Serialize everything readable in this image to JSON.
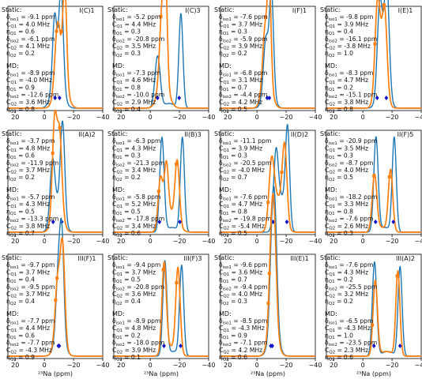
{
  "figure": {
    "xlabel": "²³Na (ppm)",
    "x_ticks": [
      "20",
      "0",
      "−20",
      "−40"
    ],
    "colors": {
      "static": "#1f77b4",
      "md": "#ff7f0e",
      "diamond": "#1414c8"
    },
    "static_header": "Static:",
    "md_header": "MD:"
  },
  "chart_data": [
    {
      "type": "line",
      "title": "I(C)1",
      "xlim": [
        25,
        -40
      ],
      "static": [
        "δiso1 = -9.1 ppm",
        "CQ1 = 4.0 MHz",
        "ηQ1 = 0.6",
        "δiso2 = -6.1 ppm",
        "CQ2 = 4.1 MHz",
        "ηQ2 = 0.2"
      ],
      "md": [
        "δiso1 = -8.9 ppm",
        "CQ1 = -4.0 MHz",
        "ηQ1 = 0.9",
        "δiso2 = -12.6 ppm",
        "CQ2 = 3.6 MHz",
        "ηQ2 = 0.8"
      ],
      "series": [
        {
          "name": "static",
          "peaks": [
            [
              -7.0,
              0.7,
              1.4
            ],
            [
              -11.5,
              1.0,
              1.5
            ],
            [
              -9.0,
              0.35,
              3.5
            ]
          ]
        },
        {
          "name": "md",
          "peaks": [
            [
              -9.0,
              0.6,
              1.8
            ],
            [
              -14.0,
              1.0,
              1.3
            ],
            [
              -11.5,
              0.4,
              3.5
            ]
          ]
        }
      ],
      "markers": {
        "static": [
          -7.3,
          -10.4
        ],
        "md": [
          -8.3,
          -11.8
        ]
      }
    },
    {
      "type": "line",
      "title": "I(C)3",
      "xlim": [
        25,
        -40
      ],
      "static": [
        "δiso1 = -5.2 ppm",
        "CQ1 = 4.4 MHz",
        "ηQ1 = 0.3",
        "δiso2 = -20.8 ppm",
        "CQ2 = 3.5 MHz",
        "ηQ2 = 0.3"
      ],
      "md": [
        "δiso1 = -7.3 ppm",
        "CQ1 = 4.6 MHz",
        "ηQ1 = 0.8",
        "δiso2 = -10.0 ppm",
        "CQ2 = 2.9 MHz",
        "ηQ2 = 0.4"
      ],
      "series": [
        {
          "name": "static",
          "peaks": [
            [
              -5.0,
              0.55,
              1.8
            ],
            [
              -21.0,
              1.0,
              1.4
            ],
            [
              -13.0,
              0.05,
              4.0
            ]
          ]
        },
        {
          "name": "md",
          "peaks": [
            [
              -8.0,
              0.75,
              1.6
            ],
            [
              -10.5,
              1.0,
              1.2
            ],
            [
              -9.0,
              0.3,
              3.5
            ]
          ]
        }
      ],
      "markers": {
        "static": [
          -5.0,
          -19.8
        ],
        "md": [
          -7.3,
          -9.7
        ]
      }
    },
    {
      "type": "line",
      "title": "I(F)1",
      "xlim": [
        25,
        -40
      ],
      "static": [
        "δiso1 = -7.6 ppm",
        "CQ1 = 3.7 MHz",
        "ηQ1 = 0.3",
        "δiso2 = -5.9 ppm",
        "CQ2 = 3.9 MHz",
        "ηQ2 = 0.2"
      ],
      "md": [
        "δiso1 = -6.8 ppm",
        "CQ1 = 3.1 MHz",
        "ηQ1 = 0.7",
        "δiso2 = -4.4 ppm",
        "CQ2 = 4.2 MHz",
        "ηQ2 = 0.5"
      ],
      "series": [
        {
          "name": "static",
          "peaks": [
            [
              -6.0,
              0.5,
              1.6
            ],
            [
              -10.0,
              1.0,
              1.4
            ],
            [
              -8.0,
              0.3,
              3.0
            ]
          ]
        },
        {
          "name": "md",
          "peaks": [
            [
              -5.5,
              0.55,
              1.6
            ],
            [
              -8.5,
              1.0,
              1.2
            ],
            [
              -7.0,
              0.35,
              3.0
            ]
          ]
        }
      ],
      "markers": {
        "static": [
          -7.0,
          -8.5
        ],
        "md": [
          -6.0,
          -7.5
        ]
      }
    },
    {
      "type": "line",
      "title": "I(E)1",
      "xlim": [
        25,
        -40
      ],
      "static": [
        "δiso1 = -9.8 ppm",
        "CQ1 = 3.9 MHz",
        "ηQ1 = 0.4",
        "δiso2 = -16.1 ppm",
        "CQ2 = -3.8 MHz",
        "ηQ2 = 1.0"
      ],
      "md": [
        "δiso1 = -8.3 ppm",
        "CQ1 = 4.7 MHz",
        "ηQ1 = 0.2",
        "δiso2 = -15.1 ppm",
        "CQ2 = 3.8 MHz",
        "ηQ2 = 0.8"
      ],
      "series": [
        {
          "name": "static",
          "peaks": [
            [
              -11.5,
              0.8,
              1.6
            ],
            [
              -16.5,
              1.0,
              1.6
            ],
            [
              -14.0,
              0.5,
              3.0
            ]
          ]
        },
        {
          "name": "md",
          "peaks": [
            [
              -10.0,
              0.85,
              1.7
            ],
            [
              -15.0,
              0.75,
              1.6
            ],
            [
              -12.5,
              0.45,
              3.0
            ]
          ]
        }
      ],
      "markers": {
        "static": [
          -9.8,
          -16.1
        ],
        "md": [
          -8.3,
          -14.5
        ]
      }
    },
    {
      "type": "line",
      "title": "II(A)2",
      "xlim": [
        25,
        -40
      ],
      "static": [
        "δiso1 = -3.7 ppm",
        "CQ1 = 4.8 MHz",
        "ηQ1 = 0.6",
        "δiso2 = -11.9 ppm",
        "CQ2 = 3.7 MHz",
        "ηQ2 = 0.2"
      ],
      "md": [
        "δiso1 = -5.7 ppm",
        "CQ1 = 4.3 MHz",
        "ηQ1 = 0.5",
        "δiso2 = -13.3 ppm",
        "CQ2 = 3.8 MHz",
        "ηQ2 = 0.7"
      ],
      "series": [
        {
          "name": "static",
          "peaks": [
            [
              -5.5,
              0.6,
              1.6
            ],
            [
              -12.5,
              1.0,
              1.5
            ],
            [
              -9.0,
              0.3,
              3.5
            ]
          ]
        },
        {
          "name": "md",
          "peaks": [
            [
              -7.0,
              0.9,
              1.5
            ],
            [
              -10.5,
              0.7,
              1.5
            ],
            [
              -9.0,
              0.4,
              3.0
            ]
          ]
        }
      ],
      "markers": {
        "static": [
          -6.0,
          -11.9
        ],
        "md": [
          -5.7,
          -10.5
        ]
      }
    },
    {
      "type": "line",
      "title": "II(B)3",
      "xlim": [
        25,
        -40
      ],
      "static": [
        "δiso1 = -6.3 ppm",
        "CQ1 = 4.3 MHz",
        "ηQ1 = 0.3",
        "δiso2 = -21.3 ppm",
        "CQ2 = 3.4 MHz",
        "ηQ2 = 0.2"
      ],
      "md": [
        "δiso1 = -5.8 ppm",
        "CQ1 = 5.2 MHz",
        "ηQ1 = 0.5",
        "δiso2 = -17.8 ppm",
        "CQ2 = 3.4 MHz",
        "ηQ2 = 0.6"
      ],
      "series": [
        {
          "name": "static",
          "peaks": [
            [
              -8.0,
              1.0,
              1.5
            ],
            [
              -22.0,
              1.0,
              1.4
            ],
            [
              -15.0,
              0.05,
              4.0
            ]
          ]
        },
        {
          "name": "md",
          "peaks": [
            [
              -7.0,
              0.55,
              1.6
            ],
            [
              -11.0,
              0.6,
              1.4
            ],
            [
              -18.5,
              0.65,
              1.5
            ],
            [
              -14.5,
              0.2,
              4.0
            ]
          ]
        }
      ],
      "markers": {
        "static": [
          -6.3,
          -20.3
        ],
        "md": [
          -5.8,
          -17.8
        ]
      }
    },
    {
      "type": "line",
      "title": "II(D)2",
      "xlim": [
        25,
        -40
      ],
      "static": [
        "δiso1 = -11.1 ppm",
        "CQ1 = 3.9 MHz",
        "ηQ1 = 0.3",
        "δiso2 = -20.5 ppm",
        "CQ2 = -4.0 MHz",
        "ηQ2 = 0.7"
      ],
      "md": [
        "δiso1 = -7.6 ppm",
        "CQ1 = 4.7 MHz",
        "ηQ1 = 0.8",
        "δiso2 = -19.8 ppm",
        "CQ2 = -5.4 MHz",
        "ηQ2 = 0.5"
      ],
      "series": [
        {
          "name": "static",
          "peaks": [
            [
              -13.0,
              0.75,
              1.6
            ],
            [
              -21.0,
              1.0,
              1.4
            ],
            [
              -17.0,
              0.35,
              3.0
            ]
          ]
        },
        {
          "name": "md",
          "peaks": [
            [
              -10.0,
              0.65,
              1.8
            ],
            [
              -19.0,
              0.8,
              1.6
            ],
            [
              -14.5,
              0.35,
              3.5
            ]
          ]
        }
      ],
      "markers": {
        "static": [
          -11.1,
          -20.5
        ],
        "md": [
          -7.6,
          -17.0
        ]
      }
    },
    {
      "type": "line",
      "title": "II(F)5",
      "xlim": [
        25,
        -40
      ],
      "static": [
        "δiso1 = -20.9 ppm",
        "CQ1 = 3.5 MHz",
        "ηQ1 = 0.3",
        "δiso2 = -8.7 ppm",
        "CQ2 = 4.0 MHz",
        "ηQ2 = 0.5"
      ],
      "md": [
        "δiso1 = -18.2 ppm",
        "CQ1 = 3.3 MHz",
        "ηQ1 = 0.8",
        "δiso2 = -7.6 ppm",
        "CQ2 = 2.6 MHz",
        "ηQ2 = 0.3"
      ],
      "series": [
        {
          "name": "static",
          "peaks": [
            [
              -9.0,
              1.0,
              1.5
            ],
            [
              -21.5,
              1.0,
              1.4
            ],
            [
              -15.0,
              0.05,
              4.0
            ]
          ]
        },
        {
          "name": "md",
          "peaks": [
            [
              -8.0,
              0.6,
              1.6
            ],
            [
              -19.0,
              0.65,
              1.5
            ],
            [
              -13.5,
              0.05,
              4.0
            ]
          ]
        }
      ],
      "markers": {
        "static": [
          -8.7,
          -20.9
        ],
        "md": [
          -7.6,
          -18.2
        ]
      }
    },
    {
      "type": "line",
      "title": "III(F)1",
      "xlim": [
        25,
        -40
      ],
      "static": [
        "δiso1 = -9.7 ppm",
        "CQ1 = 3.7 MHz",
        "ηQ1 = 0.4",
        "δiso2 = -9.5 ppm",
        "CQ2 = 3.7 MHz",
        "ηQ2 = 0.4"
      ],
      "md": [
        "δiso1 = -7.7 ppm",
        "CQ1 = 4.4 MHz",
        "ηQ1 = 0.6",
        "δiso2 = -7.7 ppm",
        "CQ2 = -4.3 MHz",
        "ηQ2 = 0.9"
      ],
      "series": [
        {
          "name": "static",
          "peaks": [
            [
              -9.5,
              0.6,
              1.5
            ],
            [
              -12.0,
              1.0,
              1.4
            ],
            [
              -10.5,
              0.3,
              3.0
            ]
          ]
        },
        {
          "name": "md",
          "peaks": [
            [
              -9.0,
              0.55,
              1.6
            ],
            [
              -12.5,
              0.95,
              1.5
            ],
            [
              -10.5,
              0.3,
              3.0
            ]
          ]
        }
      ],
      "markers": {
        "static": [
          -9.6,
          -10.2
        ],
        "md": [
          -7.7,
          -8.7
        ]
      }
    },
    {
      "type": "line",
      "title": "III(F)3",
      "xlim": [
        25,
        -40
      ],
      "static": [
        "δiso1 = -9.4 ppm",
        "CQ1 = 3.7 MHz",
        "ηQ1 = 0.5",
        "δiso2 = -20.8 ppm",
        "CQ2 = 3.6 MHz",
        "ηQ2 = 0.4"
      ],
      "md": [
        "δiso1 = -8.9 ppm",
        "CQ1 = 4.8 MHz",
        "ηQ1 = 0.2",
        "δiso2 = -18.0 ppm",
        "CQ2 = 3.9 MHz",
        "ηQ2 = 0.1"
      ],
      "series": [
        {
          "name": "static",
          "peaks": [
            [
              -10.0,
              1.0,
              1.4
            ],
            [
              -21.5,
              0.95,
              1.4
            ],
            [
              -16.0,
              0.05,
              4.0
            ]
          ]
        },
        {
          "name": "md",
          "peaks": [
            [
              -9.5,
              0.95,
              1.5
            ],
            [
              -19.0,
              0.9,
              1.5
            ],
            [
              -14.0,
              0.1,
              4.0
            ]
          ]
        }
      ],
      "markers": {
        "static": [
          -9.4,
          -20.8
        ],
        "md": [
          -8.9,
          -18.0
        ]
      }
    },
    {
      "type": "line",
      "title": "III(E)1",
      "xlim": [
        25,
        -40
      ],
      "static": [
        "δiso1 = -9.6 ppm",
        "CQ1 = 3.6 MHz",
        "ηQ1 = 0.7",
        "δiso2 = -9.4 ppm",
        "CQ2 = 4.0 MHz",
        "ηQ2 = 0.3"
      ],
      "md": [
        "δiso1 = -8.5 ppm",
        "CQ1 = -4.3 MHz",
        "ηQ1 = 0.9",
        "δiso2 = -7.1 ppm",
        "CQ2 = 4.2 MHz",
        "ηQ2 = 0.6"
      ],
      "series": [
        {
          "name": "static",
          "peaks": [
            [
              -10.5,
              0.95,
              1.6
            ],
            [
              -12.5,
              0.85,
              1.5
            ],
            [
              -11.5,
              0.35,
              3.0
            ]
          ]
        },
        {
          "name": "md",
          "peaks": [
            [
              -10.0,
              0.9,
              1.6
            ],
            [
              -12.0,
              0.8,
              1.5
            ],
            [
              -11.0,
              0.35,
              3.0
            ]
          ]
        }
      ],
      "markers": {
        "static": [
          -9.5,
          -10.5
        ],
        "md": [
          -7.8,
          -8.5
        ]
      }
    },
    {
      "type": "line",
      "title": "III(A)2",
      "xlim": [
        25,
        -40
      ],
      "static": [
        "δiso1 = -7.6 ppm",
        "CQ1 = 4.3 MHz",
        "ηQ1 = 0.2",
        "δiso2 = -25.5 ppm",
        "CQ2 = 3.2 MHz",
        "ηQ2 = 0.2"
      ],
      "md": [
        "δiso1 = -6.5 ppm",
        "CQ1 = -4.3 MHz",
        "ηQ1 = 1.0",
        "δiso2 = -23.5 ppm",
        "CQ2 = 2.3 MHz",
        "ηQ2 = 0.6"
      ],
      "series": [
        {
          "name": "static",
          "peaks": [
            [
              -8.0,
              1.0,
              1.5
            ],
            [
              -25.5,
              0.95,
              1.4
            ],
            [
              -17.0,
              0.05,
              4.0
            ]
          ]
        },
        {
          "name": "md",
          "peaks": [
            [
              -8.5,
              0.8,
              1.5
            ],
            [
              -24.0,
              0.9,
              1.4
            ],
            [
              -16.0,
              0.05,
              4.0
            ]
          ]
        }
      ],
      "markers": {
        "static": [
          -7.6,
          -25.5
        ],
        "md": [
          -6.5,
          -23.5
        ]
      }
    }
  ]
}
